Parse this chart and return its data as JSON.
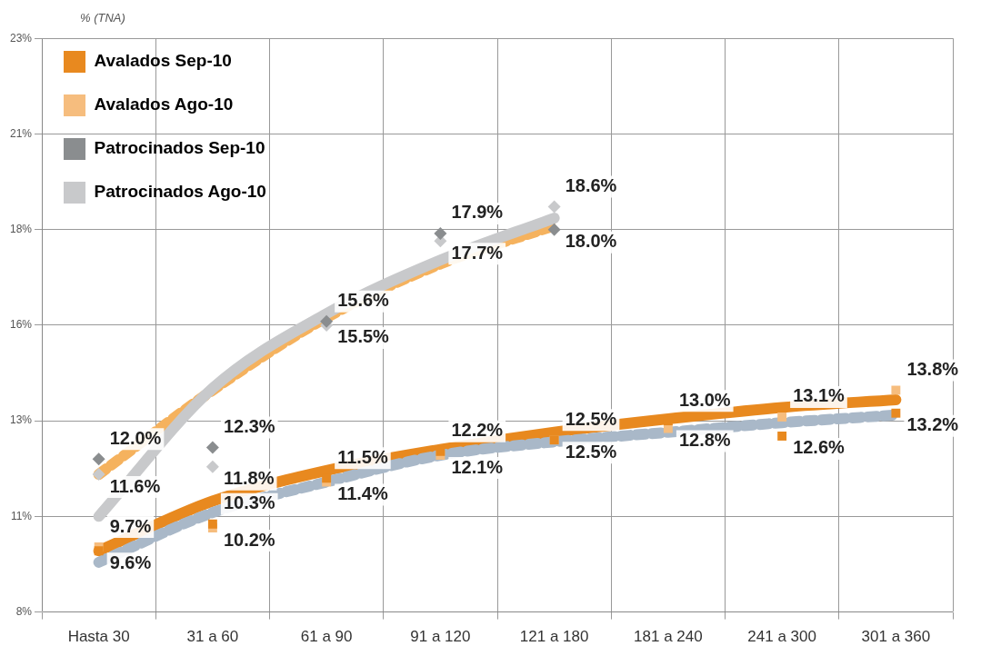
{
  "chart_data": {
    "type": "scatter",
    "ylabel": "% (TNA)",
    "categories": [
      "Hasta 30",
      "31 a 60",
      "61 a 90",
      "91 a 120",
      "121 a 180",
      "181 a 240",
      "241 a 300",
      "301 a 360"
    ],
    "ylim": [
      8,
      23
    ],
    "yticks": [
      {
        "value": 8,
        "label": "8%"
      },
      {
        "value": 10.5,
        "label": "11%"
      },
      {
        "value": 13,
        "label": "13%"
      },
      {
        "value": 15.5,
        "label": "16%"
      },
      {
        "value": 18,
        "label": "18%"
      },
      {
        "value": 20.5,
        "label": "21%"
      },
      {
        "value": 23,
        "label": "23%"
      }
    ],
    "grid": true,
    "legend": "top left",
    "series": [
      {
        "type": "line",
        "color": "#c8c9cb",
        "line_style": "solid",
        "values": [
          10.5,
          13.85,
          15.8,
          17.2,
          18.3,
          null,
          null,
          null
        ]
      },
      {
        "type": "line",
        "color": "#f5b25e",
        "line_style": "dashed",
        "values": [
          11.6,
          13.8,
          15.7,
          17.1,
          18.1,
          null,
          null,
          null
        ]
      },
      {
        "type": "line",
        "color": "#a9b8c8",
        "line_style": "dashed",
        "values": [
          9.3,
          10.6,
          11.4,
          12.1,
          12.45,
          12.7,
          12.95,
          13.15
        ]
      },
      {
        "type": "line",
        "color": "#e8891f",
        "line_style": "solid",
        "values": [
          9.6,
          10.9,
          11.7,
          12.25,
          12.7,
          13.05,
          13.35,
          13.55
        ]
      },
      {
        "name": "Avalados Sep-10",
        "type": "scatter",
        "marker": "square",
        "color": "#e8891f",
        "values": [
          9.6,
          10.3,
          11.5,
          12.2,
          12.5,
          13.0,
          12.6,
          13.2
        ],
        "value_labels": [
          "9.6%",
          "10.3%",
          "11.5%",
          "12.2%",
          "12.5%",
          "13.0%",
          "12.6%",
          "13.2%"
        ]
      },
      {
        "name": "Avalados Ago-10",
        "type": "scatter",
        "marker": "square",
        "color": "#f6bd7e",
        "values": [
          9.7,
          10.2,
          11.4,
          12.1,
          12.5,
          12.8,
          13.1,
          13.8
        ],
        "value_labels": [
          "9.7%",
          "10.2%",
          "11.4%",
          "12.1%",
          "12.5%",
          "12.8%",
          "13.1%",
          "13.8%"
        ]
      },
      {
        "name": "Patrocinados Sep-10",
        "type": "scatter",
        "marker": "diamond",
        "color": "#8a8d8f",
        "values": [
          12.0,
          12.3,
          15.6,
          17.9,
          18.0,
          null,
          null,
          null
        ],
        "value_labels": [
          "12.0%",
          "12.3%",
          "15.6%",
          "17.9%",
          "18.0%",
          null,
          null,
          null
        ]
      },
      {
        "name": "Patrocinados Ago-10",
        "type": "scatter",
        "marker": "diamond",
        "color": "#c8c9cb",
        "values": [
          11.6,
          11.8,
          15.5,
          17.7,
          18.6,
          null,
          null,
          null
        ],
        "value_labels": [
          "11.6%",
          "11.8%",
          "15.5%",
          "17.7%",
          "18.6%",
          null,
          null,
          null
        ]
      }
    ]
  }
}
